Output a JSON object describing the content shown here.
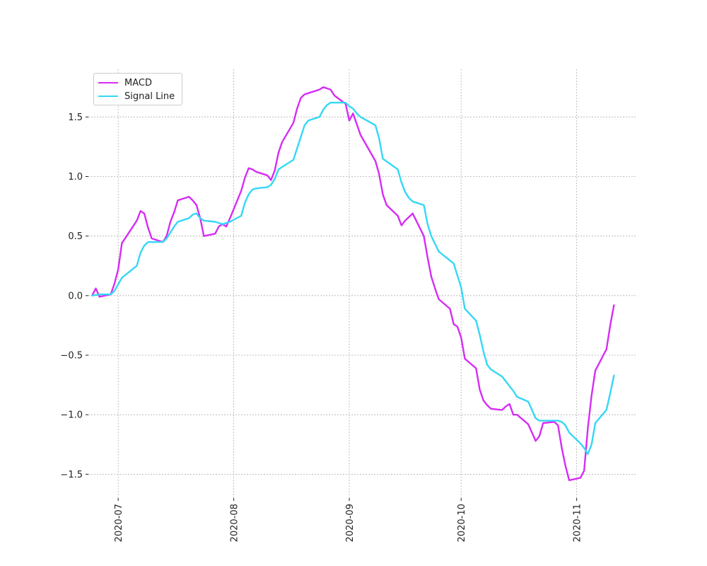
{
  "chart_data": {
    "type": "line",
    "title": "",
    "xlabel": "",
    "ylabel": "",
    "x_ticks": [
      "2020-07",
      "2020-08",
      "2020-09",
      "2020-10",
      "2020-11"
    ],
    "y_ticks": [
      "1.5",
      "1.0",
      "0.5",
      "0.0",
      "−0.5",
      "−1.0",
      "−1.5"
    ],
    "y_tick_values": [
      1.5,
      1.0,
      0.5,
      0.0,
      -0.5,
      -1.0,
      -1.5
    ],
    "xlim": [
      "2020-06-23",
      "2020-11-17"
    ],
    "ylim": [
      -1.7,
      1.9
    ],
    "grid": true,
    "legend_position": "upper-left",
    "series": [
      {
        "name": "MACD",
        "color": "#d62cf5",
        "x": [
          "2020-06-24",
          "2020-06-25",
          "2020-06-26",
          "2020-06-29",
          "2020-06-30",
          "2020-07-01",
          "2020-07-02",
          "2020-07-06",
          "2020-07-07",
          "2020-07-08",
          "2020-07-09",
          "2020-07-10",
          "2020-07-13",
          "2020-07-14",
          "2020-07-15",
          "2020-07-16",
          "2020-07-17",
          "2020-07-20",
          "2020-07-21",
          "2020-07-22",
          "2020-07-23",
          "2020-07-24",
          "2020-07-27",
          "2020-07-28",
          "2020-07-29",
          "2020-07-30",
          "2020-07-31",
          "2020-08-03",
          "2020-08-04",
          "2020-08-05",
          "2020-08-06",
          "2020-08-07",
          "2020-08-10",
          "2020-08-11",
          "2020-08-12",
          "2020-08-13",
          "2020-08-14",
          "2020-08-17",
          "2020-08-18",
          "2020-08-19",
          "2020-08-20",
          "2020-08-21",
          "2020-08-24",
          "2020-08-25",
          "2020-08-26",
          "2020-08-27",
          "2020-08-28",
          "2020-08-31",
          "2020-09-01",
          "2020-09-02",
          "2020-09-03",
          "2020-09-04",
          "2020-09-08",
          "2020-09-09",
          "2020-09-10",
          "2020-09-11",
          "2020-09-14",
          "2020-09-15",
          "2020-09-16",
          "2020-09-17",
          "2020-09-18",
          "2020-09-21",
          "2020-09-22",
          "2020-09-23",
          "2020-09-24",
          "2020-09-25",
          "2020-09-28",
          "2020-09-29",
          "2020-09-30",
          "2020-10-01",
          "2020-10-02",
          "2020-10-05",
          "2020-10-06",
          "2020-10-07",
          "2020-10-08",
          "2020-10-09",
          "2020-10-12",
          "2020-10-13",
          "2020-10-14",
          "2020-10-15",
          "2020-10-16",
          "2020-10-19",
          "2020-10-20",
          "2020-10-21",
          "2020-10-22",
          "2020-10-23",
          "2020-10-26",
          "2020-10-27",
          "2020-10-28",
          "2020-10-29",
          "2020-10-30",
          "2020-11-02",
          "2020-11-03",
          "2020-11-04",
          "2020-11-05",
          "2020-11-06",
          "2020-11-09",
          "2020-11-10",
          "2020-11-11"
        ],
        "y": [
          0.0,
          0.06,
          -0.01,
          0.01,
          0.1,
          0.22,
          0.44,
          0.63,
          0.71,
          0.69,
          0.57,
          0.48,
          0.45,
          0.5,
          0.62,
          0.7,
          0.8,
          0.83,
          0.8,
          0.76,
          0.65,
          0.5,
          0.52,
          0.58,
          0.6,
          0.58,
          0.65,
          0.88,
          0.99,
          1.07,
          1.06,
          1.04,
          1.01,
          0.97,
          1.05,
          1.2,
          1.29,
          1.45,
          1.57,
          1.66,
          1.69,
          1.7,
          1.73,
          1.75,
          1.74,
          1.73,
          1.68,
          1.61,
          1.47,
          1.53,
          1.44,
          1.35,
          1.13,
          1.02,
          0.85,
          0.76,
          0.67,
          0.59,
          0.63,
          0.66,
          0.69,
          0.5,
          0.32,
          0.16,
          0.06,
          -0.03,
          -0.11,
          -0.24,
          -0.26,
          -0.35,
          -0.53,
          -0.61,
          -0.79,
          -0.88,
          -0.92,
          -0.95,
          -0.96,
          -0.93,
          -0.91,
          -1.0,
          -1.0,
          -1.08,
          -1.15,
          -1.22,
          -1.18,
          -1.07,
          -1.06,
          -1.09,
          -1.28,
          -1.43,
          -1.55,
          -1.53,
          -1.47,
          -1.11,
          -0.84,
          -0.63,
          -0.45,
          -0.25,
          -0.08
        ]
      },
      {
        "name": "Signal Line",
        "color": "#35d7f5",
        "x": [
          "2020-06-24",
          "2020-06-26",
          "2020-06-29",
          "2020-06-30",
          "2020-07-02",
          "2020-07-06",
          "2020-07-07",
          "2020-07-08",
          "2020-07-09",
          "2020-07-10",
          "2020-07-13",
          "2020-07-14",
          "2020-07-15",
          "2020-07-16",
          "2020-07-17",
          "2020-07-20",
          "2020-07-21",
          "2020-07-22",
          "2020-07-23",
          "2020-07-24",
          "2020-07-27",
          "2020-07-29",
          "2020-07-31",
          "2020-08-03",
          "2020-08-04",
          "2020-08-05",
          "2020-08-06",
          "2020-08-07",
          "2020-08-10",
          "2020-08-11",
          "2020-08-12",
          "2020-08-13",
          "2020-08-17",
          "2020-08-20",
          "2020-08-21",
          "2020-08-24",
          "2020-08-25",
          "2020-08-26",
          "2020-08-27",
          "2020-08-28",
          "2020-08-31",
          "2020-09-01",
          "2020-09-02",
          "2020-09-03",
          "2020-09-04",
          "2020-09-08",
          "2020-09-09",
          "2020-09-10",
          "2020-09-14",
          "2020-09-15",
          "2020-09-16",
          "2020-09-17",
          "2020-09-18",
          "2020-09-21",
          "2020-09-22",
          "2020-09-23",
          "2020-09-25",
          "2020-09-29",
          "2020-09-30",
          "2020-10-01",
          "2020-10-02",
          "2020-10-05",
          "2020-10-06",
          "2020-10-07",
          "2020-10-08",
          "2020-10-09",
          "2020-10-12",
          "2020-10-13",
          "2020-10-14",
          "2020-10-15",
          "2020-10-16",
          "2020-10-19",
          "2020-10-20",
          "2020-10-21",
          "2020-10-22",
          "2020-10-23",
          "2020-10-26",
          "2020-10-27",
          "2020-10-28",
          "2020-10-29",
          "2020-10-30",
          "2020-11-02",
          "2020-11-03",
          "2020-11-04",
          "2020-11-05",
          "2020-11-06",
          "2020-11-09",
          "2020-11-10",
          "2020-11-11"
        ],
        "y": [
          0.0,
          0.01,
          0.01,
          0.04,
          0.15,
          0.25,
          0.36,
          0.42,
          0.45,
          0.45,
          0.45,
          0.48,
          0.53,
          0.58,
          0.62,
          0.65,
          0.68,
          0.69,
          0.65,
          0.63,
          0.62,
          0.6,
          0.62,
          0.67,
          0.78,
          0.85,
          0.89,
          0.9,
          0.91,
          0.93,
          0.98,
          1.06,
          1.14,
          1.43,
          1.47,
          1.5,
          1.56,
          1.6,
          1.62,
          1.62,
          1.62,
          1.59,
          1.57,
          1.53,
          1.5,
          1.43,
          1.32,
          1.15,
          1.06,
          0.95,
          0.87,
          0.82,
          0.79,
          0.76,
          0.6,
          0.5,
          0.37,
          0.27,
          0.17,
          0.07,
          -0.11,
          -0.21,
          -0.33,
          -0.47,
          -0.58,
          -0.62,
          -0.68,
          -0.72,
          -0.76,
          -0.8,
          -0.85,
          -0.89,
          -0.96,
          -1.03,
          -1.05,
          -1.05,
          -1.05,
          -1.05,
          -1.06,
          -1.09,
          -1.15,
          -1.24,
          -1.28,
          -1.33,
          -1.25,
          -1.07,
          -0.96,
          -0.82,
          -0.67
        ]
      }
    ]
  }
}
